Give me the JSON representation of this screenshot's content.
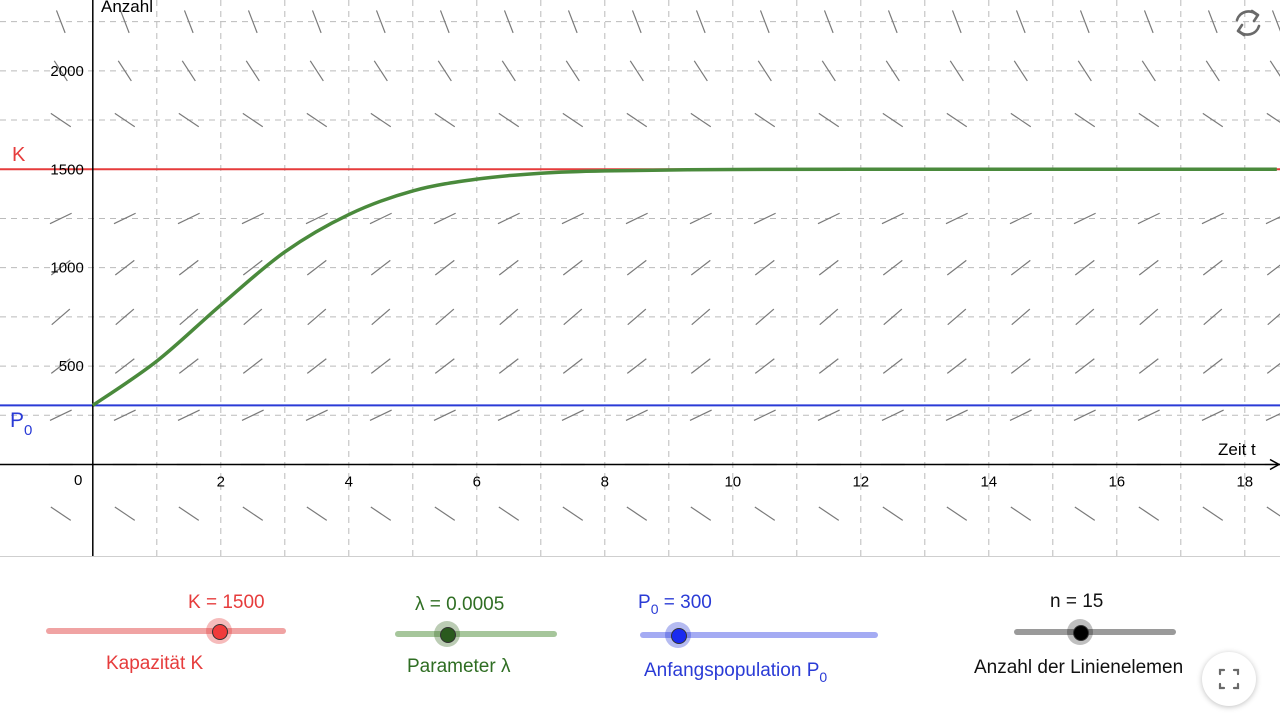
{
  "graph": {
    "y_axis_label": "Anzahl",
    "x_axis_label": "Zeit t",
    "origin_label": "0",
    "x_ticks": [
      "2",
      "4",
      "6",
      "8",
      "10",
      "12",
      "14",
      "16",
      "18"
    ],
    "y_ticks": [
      "500",
      "1000",
      "1500",
      "2000"
    ],
    "k_line_label": "K",
    "p0_line_label": "P",
    "p0_line_sub": "0",
    "colors": {
      "K": "#e63c3c",
      "P0": "#2a3bd6",
      "curve": "#4a8a3c",
      "axis": "#000000",
      "grid": "#bbbbbb",
      "slope": "#7a7a7a"
    }
  },
  "chart_data": {
    "type": "line",
    "title": "",
    "xlabel": "Zeit t",
    "ylabel": "Anzahl",
    "xlim": [
      -1.45,
      18.55
    ],
    "ylim": [
      -465,
      2360
    ],
    "grid": true,
    "K": 1500,
    "lambda": 0.0005,
    "P0": 300,
    "n": 15,
    "series": [
      {
        "name": "",
        "x": [
          0,
          1,
          2,
          3,
          4,
          5,
          6,
          7,
          8,
          10,
          12,
          14,
          16,
          18.5
        ],
        "values": [
          300,
          525,
          810,
          1080,
          1270,
          1390,
          1450,
          1480,
          1492,
          1499,
          1500,
          1500,
          1500,
          1500
        ]
      }
    ]
  },
  "sliders": [
    {
      "value_label": "K = 1500",
      "caption": "Kapazität K",
      "color": "#e63c3c",
      "position": 0.72
    },
    {
      "value_label": "λ = 0.0005",
      "caption": "Parameter λ",
      "color": "#2f6e23",
      "position": 0.32
    },
    {
      "value_prefix": "P",
      "value_sub": "0",
      "value_rest": " = 300",
      "caption_prefix": "Anfangspopulation P",
      "caption_sub": "0",
      "color": "#2a3bd6",
      "position": 0.16
    },
    {
      "value_label": "n = 15",
      "caption": "Anzahl der Linienelemen",
      "color": "#111111",
      "position": 0.4
    }
  ],
  "icons": {
    "reset": "refresh-icon",
    "fullscreen": "fullscreen-icon"
  }
}
